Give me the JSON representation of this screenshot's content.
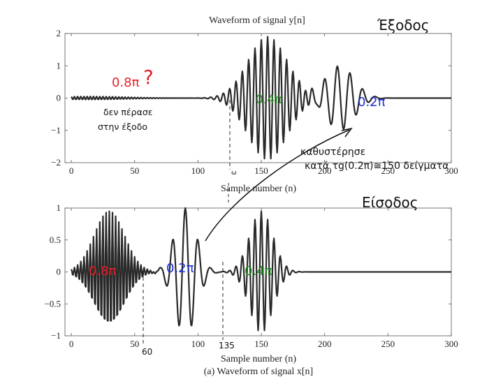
{
  "chart_data": [
    {
      "type": "line",
      "title": "Waveform of signal y[n]",
      "xlabel": "Sample number (n)",
      "ylabel": "",
      "xlim": [
        -5,
        300
      ],
      "ylim": [
        -2,
        2
      ],
      "xticks": [
        "0",
        "50",
        "100",
        "150",
        "200",
        "250",
        "300"
      ],
      "yticks": [
        "2",
        "1",
        "0",
        "−1",
        "−2"
      ],
      "grid": false,
      "series": [
        {
          "components": [
            {
              "center": 155,
              "width": 22,
              "amplitude": 1.9,
              "freq": 0.4
            },
            {
              "center": 212,
              "width": 16,
              "amplitude": 1.0,
              "freq": 0.2
            },
            {
              "center": 15,
              "width": 40,
              "amplitude": 0.05,
              "freq": 0.8
            }
          ]
        }
      ]
    },
    {
      "type": "line",
      "title": "",
      "xlabel": "Sample number (n)",
      "ylabel": "",
      "caption": "(a) Waveform of signal x[n]",
      "xlim": [
        -5,
        300
      ],
      "ylim": [
        -1,
        1
      ],
      "xticks": [
        "0",
        "50",
        "100",
        "150",
        "200",
        "250",
        "300"
      ],
      "yticks": [
        "1",
        "0.5",
        "0",
        "−0.5",
        "−1"
      ],
      "grid": false,
      "series": [
        {
          "components": [
            {
              "center": 30,
              "width": 17,
              "amplitude": 0.95,
              "freq": 0.8
            },
            {
              "center": 90,
              "width": 12,
              "amplitude": 1.0,
              "freq": 0.2
            },
            {
              "center": 150,
              "width": 13,
              "amplitude": 0.95,
              "freq": 0.4
            }
          ]
        }
      ]
    }
  ],
  "annotations": {
    "output_label": "Έξοδος",
    "input_label": "Είσοδος",
    "missing_freq": "0.8π",
    "missing_mark": "?",
    "missing_note_line1": "δεν πέρασε",
    "missing_note_line2": "στην έξοδο",
    "out_freq_mid": "0.4π",
    "out_freq_right": "0.2π",
    "in_freq_left": "0.8π",
    "in_freq_mid": "0.2π",
    "in_freq_right": "0.4π",
    "delay_line1": "καθυστέρησε",
    "delay_line2": "κατά τg(0.2π)≅150 δείγματα",
    "mark_60": "60",
    "mark_135": "135",
    "mark_small": "ω"
  },
  "colors": {
    "red": "#e8202a",
    "blue": "#1b2fd6",
    "green": "#1f8a1f",
    "ink": "#111111",
    "wave": "#2a2a2a"
  }
}
